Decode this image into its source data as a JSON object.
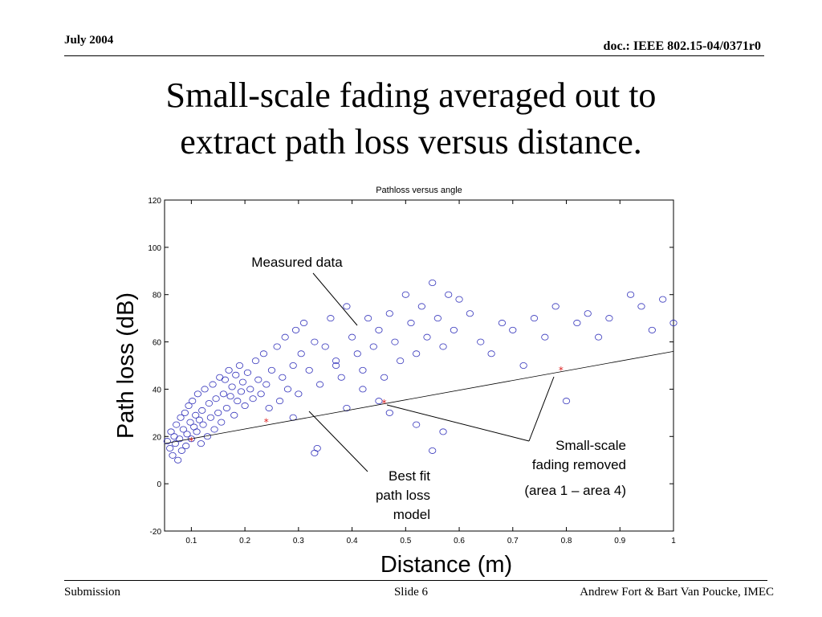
{
  "header": {
    "date": "July 2004",
    "doc": "doc.: IEEE 802.15-04/0371r0"
  },
  "slide_title": {
    "line1": "Small-scale fading averaged out to",
    "line2": "extract path loss versus distance."
  },
  "footer": {
    "left": "Submission",
    "center": "Slide 6",
    "right": "Andrew Fort & Bart Van Poucke, IMEC"
  },
  "annotations": {
    "measured": "Measured data",
    "small_scale_1": "Small-scale",
    "small_scale_2": "fading removed",
    "small_scale_3": "(area 1 – area 4)",
    "best_fit_1": "Best fit",
    "best_fit_2": "path loss",
    "best_fit_3": "model"
  },
  "colors": {
    "scatter": "#3333bb",
    "area_points": "#dd2222",
    "fit_line": "#000000"
  },
  "chart_data": {
    "type": "scatter",
    "title": "Pathloss versus angle",
    "xlabel": "Distance (m)",
    "ylabel": "Path loss (dB)",
    "xlim": [
      0.05,
      1.0
    ],
    "ylim": [
      -20,
      120
    ],
    "xticks": [
      0.1,
      0.2,
      0.3,
      0.4,
      0.5,
      0.6,
      0.7,
      0.8,
      0.9,
      1
    ],
    "xtick_labels": [
      "0.1",
      "0.2",
      "0.3",
      "0.4",
      "0.5",
      "0.6",
      "0.7",
      "0.8",
      "0.9",
      "1"
    ],
    "yticks": [
      -20,
      0,
      20,
      40,
      60,
      80,
      100,
      120
    ],
    "ytick_labels": [
      "-20",
      "0",
      "20",
      "40",
      "60",
      "80",
      "100",
      "120"
    ],
    "grid": false,
    "series": [
      {
        "marker": "circle",
        "x": [
          0.055,
          0.06,
          0.062,
          0.065,
          0.068,
          0.07,
          0.072,
          0.075,
          0.078,
          0.08,
          0.082,
          0.085,
          0.088,
          0.09,
          0.092,
          0.095,
          0.098,
          0.1,
          0.102,
          0.105,
          0.108,
          0.11,
          0.112,
          0.115,
          0.118,
          0.12,
          0.122,
          0.125,
          0.13,
          0.133,
          0.136,
          0.14,
          0.143,
          0.146,
          0.15,
          0.153,
          0.156,
          0.16,
          0.163,
          0.166,
          0.17,
          0.173,
          0.176,
          0.18,
          0.183,
          0.186,
          0.19,
          0.193,
          0.196,
          0.2,
          0.205,
          0.21,
          0.215,
          0.22,
          0.225,
          0.23,
          0.235,
          0.24,
          0.245,
          0.25,
          0.26,
          0.265,
          0.27,
          0.275,
          0.28,
          0.29,
          0.295,
          0.3,
          0.305,
          0.31,
          0.32,
          0.33,
          0.335,
          0.34,
          0.35,
          0.36,
          0.37,
          0.38,
          0.39,
          0.4,
          0.41,
          0.42,
          0.43,
          0.44,
          0.45,
          0.46,
          0.47,
          0.48,
          0.49,
          0.5,
          0.51,
          0.52,
          0.53,
          0.54,
          0.55,
          0.56,
          0.57,
          0.58,
          0.59,
          0.6,
          0.62,
          0.64,
          0.66,
          0.68,
          0.7,
          0.72,
          0.74,
          0.76,
          0.78,
          0.8,
          0.82,
          0.84,
          0.86,
          0.88,
          0.92,
          0.94,
          0.96,
          0.98,
          1.0,
          0.37,
          0.42,
          0.47,
          0.52,
          0.57,
          0.45,
          0.55,
          0.33,
          0.29,
          0.39
        ],
        "y": [
          18,
          15,
          22,
          12,
          20,
          17,
          25,
          10,
          19,
          28,
          14,
          23,
          30,
          16,
          21,
          33,
          26,
          19,
          35,
          24,
          29,
          22,
          38,
          27,
          17,
          31,
          25,
          40,
          20,
          34,
          28,
          42,
          23,
          36,
          30,
          45,
          26,
          38,
          44,
          32,
          48,
          37,
          41,
          29,
          46,
          35,
          50,
          39,
          43,
          33,
          47,
          40,
          36,
          52,
          44,
          38,
          55,
          42,
          32,
          48,
          58,
          35,
          45,
          62,
          40,
          50,
          65,
          38,
          55,
          68,
          48,
          60,
          15,
          42,
          58,
          70,
          52,
          45,
          75,
          62,
          55,
          48,
          70,
          58,
          65,
          45,
          72,
          60,
          52,
          80,
          68,
          55,
          75,
          62,
          85,
          70,
          58,
          80,
          65,
          78,
          72,
          60,
          55,
          68,
          65,
          50,
          70,
          62,
          75,
          35,
          68,
          72,
          62,
          70,
          80,
          75,
          65,
          78,
          68,
          50,
          40,
          30,
          25,
          22,
          35,
          14,
          13,
          28,
          32
        ]
      }
    ],
    "area_points": {
      "marker": "star",
      "x": [
        0.1,
        0.24,
        0.46,
        0.79
      ],
      "y": [
        18,
        26,
        34,
        48
      ]
    },
    "fit_line": {
      "x": [
        0.05,
        1.0
      ],
      "y": [
        17,
        56
      ]
    }
  }
}
